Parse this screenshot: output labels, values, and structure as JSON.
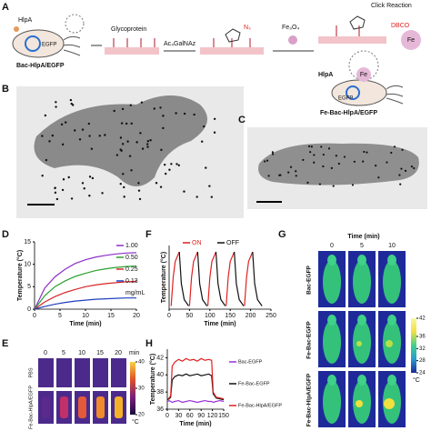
{
  "panel_labels": [
    "A",
    "B",
    "C",
    "D",
    "E",
    "F",
    "G",
    "H"
  ],
  "scheme": {
    "hlpa": "HlpA",
    "bac": "Bac-HlpA/EGFP",
    "egfp": "EGFP",
    "glyco": "Glycoprotein",
    "sugar": "Ac₄GalNAz",
    "n3": "N₃",
    "fe3o4": "Fe₃O₄",
    "click": "Click Reaction",
    "dbco": "DBCO",
    "fe": "Fe",
    "hlpa2": "HlpA",
    "egfp2": "EGFP",
    "fe2": "Fe",
    "product": "Fe-Bac-HlpA/EGFP"
  },
  "chart_data": [
    {
      "type": "line",
      "xlabel": "Time (min)",
      "ylabel": "Temperature (°C)",
      "legend": "right",
      "legend_note": "mg/mL",
      "x": [
        0,
        2,
        4,
        6,
        8,
        10,
        12,
        14,
        16,
        18,
        20
      ],
      "xlim": [
        0,
        20
      ],
      "xticks": [
        0,
        5,
        10,
        15,
        20
      ],
      "ylim": [
        0,
        15
      ],
      "yticks": [
        0,
        5,
        10,
        15
      ],
      "series": [
        {
          "name": "1.00",
          "color": "#8b2fc9",
          "values": [
            0,
            4.7,
            7.2,
            8.9,
            10.2,
            11.0,
            11.6,
            12.0,
            12.3,
            12.5,
            12.6
          ]
        },
        {
          "name": "0.50",
          "color": "#2ca02c",
          "values": [
            0,
            3.0,
            5.0,
            6.3,
            7.3,
            8.0,
            8.6,
            9.0,
            9.3,
            9.5,
            9.6
          ]
        },
        {
          "name": "0.25",
          "color": "#d62728",
          "values": [
            0,
            1.6,
            2.8,
            3.7,
            4.4,
            5.0,
            5.4,
            5.7,
            5.9,
            6.1,
            6.2
          ]
        },
        {
          "name": "0.13",
          "color": "#1f3fbf",
          "values": [
            0,
            0.6,
            1.1,
            1.5,
            1.8,
            2.0,
            2.2,
            2.3,
            2.4,
            2.5,
            2.5
          ]
        }
      ]
    },
    {
      "type": "line",
      "xlabel": "Time (min)",
      "ylabel": "Temperature (°C)",
      "legend": "top",
      "x": [
        5,
        10,
        15,
        25,
        30,
        37,
        48,
        50,
        55,
        60,
        70,
        75,
        82,
        93,
        95,
        100,
        105,
        115,
        120,
        127,
        138,
        140,
        145,
        150,
        160,
        165,
        172,
        183,
        185,
        190,
        195,
        205,
        210,
        217,
        228
      ],
      "xlim": [
        0,
        250
      ],
      "xticks": [
        0,
        50,
        100,
        150,
        200,
        250
      ],
      "ylim": [
        0,
        10
      ],
      "series": [
        {
          "name": "ON",
          "color": "#e02020",
          "values": [
            0.5,
            5,
            7.5,
            9,
            null,
            null,
            null,
            0.5,
            5,
            7.5,
            9,
            null,
            null,
            null,
            0.5,
            5,
            7.5,
            9,
            null,
            null,
            null,
            0.5,
            5,
            7.5,
            9,
            null,
            null,
            null,
            0.5,
            5,
            7.5,
            9,
            null,
            null,
            null
          ]
        },
        {
          "name": "OFF",
          "color": "#111111",
          "values": [
            null,
            null,
            null,
            9,
            4,
            1.5,
            0.5,
            null,
            null,
            null,
            9,
            4,
            1.5,
            0.5,
            null,
            null,
            null,
            9,
            4,
            1.5,
            0.5,
            null,
            null,
            null,
            9,
            4,
            1.5,
            0.5,
            null,
            null,
            null,
            9,
            4,
            1.5,
            0.5
          ]
        }
      ]
    },
    {
      "type": "line",
      "xlabel": "Time (min)",
      "ylabel": "Temperature (°C)",
      "legend": "outside-right",
      "x": [
        0,
        5,
        9,
        13,
        20,
        30,
        40,
        50,
        60,
        70,
        80,
        90,
        100,
        110,
        118,
        122,
        130,
        140,
        150
      ],
      "xlim": [
        0,
        150
      ],
      "xticks": [
        0,
        30,
        60,
        90,
        120,
        150
      ],
      "ylim": [
        36,
        43
      ],
      "yticks": [
        36,
        38,
        40,
        42
      ],
      "series": [
        {
          "name": "Bac-EGFP",
          "color": "#9b30d9",
          "values": [
            36.9,
            37.0,
            36.9,
            36.8,
            36.9,
            37.0,
            36.8,
            36.9,
            37.0,
            36.9,
            36.8,
            36.9,
            37.0,
            36.9,
            36.9,
            36.8,
            36.9,
            37.0,
            36.9
          ]
        },
        {
          "name": "Fe-Bac-EGFP",
          "color": "#111111",
          "values": [
            37.1,
            37.2,
            37.4,
            39.4,
            39.8,
            40.0,
            39.9,
            40.1,
            39.9,
            40.0,
            40.1,
            39.9,
            40.0,
            40.1,
            39.9,
            37.8,
            37.3,
            37.2,
            37.1
          ]
        },
        {
          "name": "Fe-Bac-HlpA/EGFP",
          "color": "#e02020",
          "values": [
            37.2,
            37.3,
            37.6,
            41.0,
            41.5,
            41.8,
            41.6,
            41.9,
            41.7,
            41.8,
            41.6,
            41.9,
            41.7,
            41.8,
            41.7,
            38.0,
            37.4,
            37.3,
            37.2
          ]
        }
      ]
    }
  ],
  "thermal_E": {
    "times": [
      "0",
      "5",
      "10",
      "15",
      "20"
    ],
    "time_unit": "min",
    "rows": [
      "PBS",
      "Fe-Bac-HlpA/EGFP"
    ],
    "colorbar": {
      "lim": [
        20,
        40
      ],
      "ticks": [
        20,
        30,
        40
      ],
      "unit": "°C"
    }
  },
  "thermal_G": {
    "title": "Time (min)",
    "times": [
      "0",
      "5",
      "10"
    ],
    "rows": [
      "Bac-EGFP",
      "Fe-Bac-EGFP",
      "Fe-Bac-HlpA/EGFP"
    ],
    "colorbar": {
      "lim": [
        24,
        42
      ],
      "ticks": [
        24,
        28,
        32,
        36,
        42
      ],
      "unit": "°C"
    }
  }
}
